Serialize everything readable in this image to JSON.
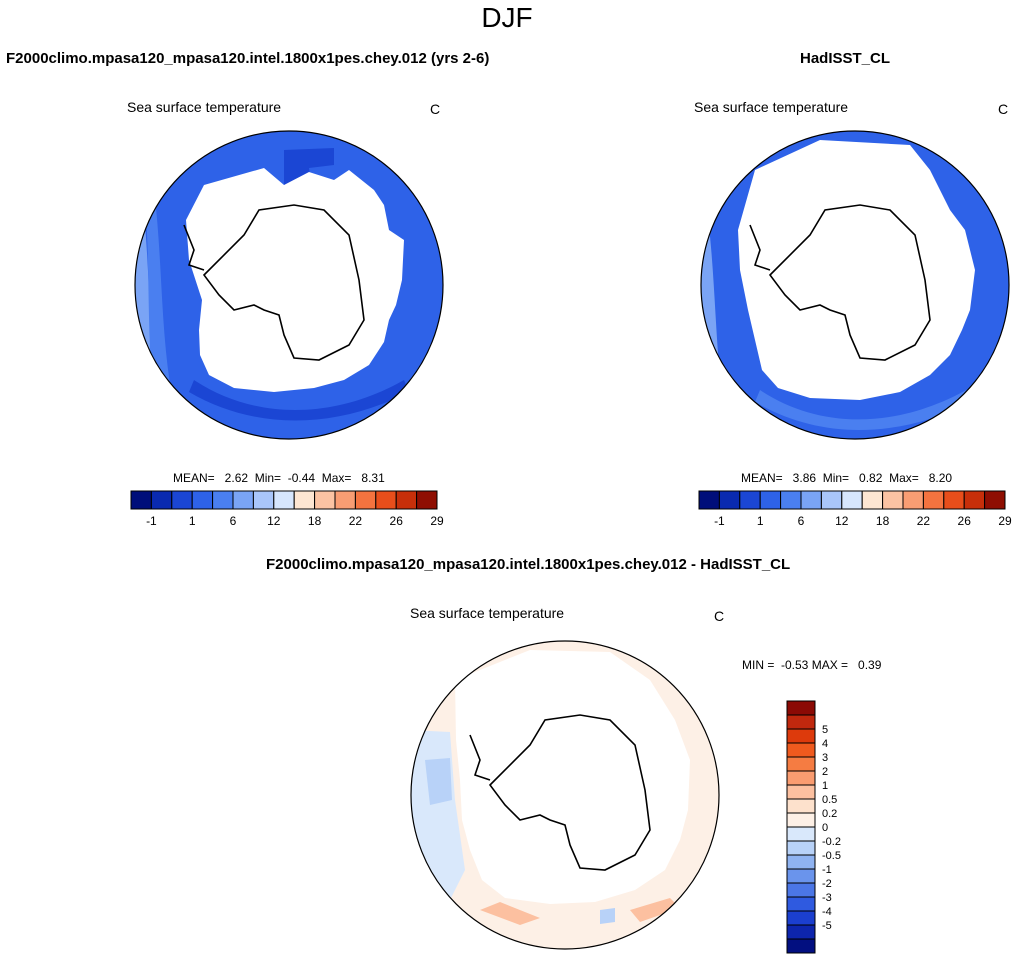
{
  "page": {
    "title": "DJF"
  },
  "panels": {
    "left": {
      "title": "F2000climo.mpasa120_mpasa120.intel.1800x1pes.chey.012 (yrs 2-6)",
      "variable": "Sea surface temperature",
      "units": "C",
      "stats": "MEAN=   2.62  Min=  -0.44  Max=   8.31"
    },
    "right": {
      "title": "HadISST_CL",
      "variable": "Sea surface temperature",
      "units": "C",
      "stats": "MEAN=   3.86  Min=   0.82  Max=   8.20"
    },
    "diff": {
      "title": "F2000climo.mpasa120_mpasa120.intel.1800x1pes.chey.012 - HadISST_CL",
      "variable": "Sea surface temperature",
      "units": "C",
      "stats": "MIN =  -0.53 MAX =   0.39"
    }
  },
  "chart_data": [
    {
      "type": "heatmap",
      "projection": "south-polar-stereographic",
      "title": "F2000climo.mpasa120_mpasa120.intel.1800x1pes.chey.012 (yrs 2-6)",
      "variable": "Sea surface temperature",
      "units": "C",
      "mean": 2.62,
      "min": -0.44,
      "max": 8.31,
      "colorbar": {
        "orientation": "horizontal",
        "colors": [
          "#000e7a",
          "#0a2ab0",
          "#1b46d4",
          "#2e62e8",
          "#4a7ff0",
          "#7aa4f5",
          "#a9c6fa",
          "#d6e6fd",
          "#fde6d2",
          "#fbc3a3",
          "#f89d73",
          "#f4733f",
          "#e84e1b",
          "#c72f0a",
          "#8f0e02"
        ],
        "labels": [
          "-1",
          "1",
          "6",
          "12",
          "18",
          "22",
          "26",
          "29"
        ]
      }
    },
    {
      "type": "heatmap",
      "projection": "south-polar-stereographic",
      "title": "HadISST_CL",
      "variable": "Sea surface temperature",
      "units": "C",
      "mean": 3.86,
      "min": 0.82,
      "max": 8.2,
      "colorbar": {
        "orientation": "horizontal",
        "colors": [
          "#000e7a",
          "#0a2ab0",
          "#1b46d4",
          "#2e62e8",
          "#4a7ff0",
          "#7aa4f5",
          "#a9c6fa",
          "#d6e6fd",
          "#fde6d2",
          "#fbc3a3",
          "#f89d73",
          "#f4733f",
          "#e84e1b",
          "#c72f0a",
          "#8f0e02"
        ],
        "labels": [
          "-1",
          "1",
          "6",
          "12",
          "18",
          "22",
          "26",
          "29"
        ]
      }
    },
    {
      "type": "heatmap",
      "projection": "south-polar-stereographic",
      "title": "F2000climo.mpasa120_mpasa120.intel.1800x1pes.chey.012 - HadISST_CL",
      "variable": "Sea surface temperature",
      "units": "C",
      "min": -0.53,
      "max": 0.39,
      "colorbar": {
        "orientation": "vertical",
        "colors_top_to_bottom": [
          "#8b0a05",
          "#c0280e",
          "#dd3a0c",
          "#ef5a1e",
          "#f57c42",
          "#fa9c70",
          "#fcc0a0",
          "#fde1cc",
          "#fdf0e6",
          "#d9e8fb",
          "#b8d2f8",
          "#8fb3f1",
          "#6a94ec",
          "#4b76e6",
          "#2f5ae0",
          "#1b3fcf",
          "#0d25ad",
          "#020f80"
        ],
        "labels_top_to_bottom": [
          "5",
          "4",
          "3",
          "2",
          "1",
          "0.5",
          "0.2",
          "0",
          "-0.2",
          "-0.5",
          "-1",
          "-2",
          "-3",
          "-4",
          "-5"
        ]
      }
    }
  ]
}
